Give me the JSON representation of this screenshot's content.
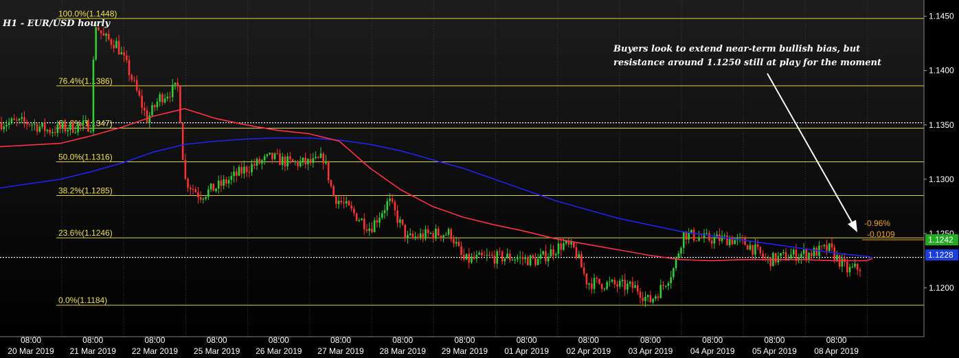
{
  "chart_title": "H1 - EUR/USD hourly",
  "annotation": {
    "line1": "Buyers look to extend near-term bullish bias, but",
    "line2": "resistance around 1.1250 still at play for the moment"
  },
  "colors": {
    "background": "#000000",
    "up_candle": "#33cc33",
    "down_candle": "#ff3333",
    "ma_fast": "#ff3344",
    "ma_slow": "#2222ee",
    "fib_line": "#e6d43c",
    "fib_label": "#f0e050",
    "price_badge": "#22aa22",
    "blue_badge": "#1a3fe0"
  },
  "chart_data": {
    "type": "candlestick",
    "instrument": "EUR/USD",
    "timeframe": "H1",
    "ylim": [
      1.1155,
      1.1465
    ],
    "y_ticks": [
      "1.1450",
      "1.1400",
      "1.1350",
      "1.1300",
      "1.1250",
      "1.1200"
    ],
    "time_hour_label": "08:00",
    "date_labels": [
      "20 Mar 2019",
      "21 Mar 2019",
      "22 Mar 2019",
      "25 Mar 2019",
      "26 Mar 2019",
      "27 Mar 2019",
      "28 Mar 2019",
      "29 Mar 2019",
      "01 Apr 2019",
      "02 Apr 2019",
      "03 Apr 2019",
      "04 Apr 2019",
      "05 Apr 2019",
      "08 Apr 2019"
    ],
    "fib_levels": [
      {
        "label": "100.0%(1.1448)",
        "value": 1.1448
      },
      {
        "label": "76.4%(1.1386)",
        "value": 1.1386
      },
      {
        "label": "61.8%(1.1347)",
        "value": 1.1347
      },
      {
        "label": "50.0%(1.1316)",
        "value": 1.1316
      },
      {
        "label": "38.2%(1.1285)",
        "value": 1.1285
      },
      {
        "label": "23.6%(1.1246)",
        "value": 1.1246
      },
      {
        "label": "0.0%(1.1184)",
        "value": 1.1184
      }
    ],
    "dotted_levels": [
      1.1352,
      1.1228
    ],
    "price_path": [
      [
        0,
        1.1352
      ],
      [
        0.3,
        1.1345
      ],
      [
        0.7,
        1.1348
      ],
      [
        1.0,
        1.135
      ],
      [
        1.05,
        1.1445
      ],
      [
        1.2,
        1.143
      ],
      [
        1.4,
        1.1425
      ],
      [
        1.6,
        1.14
      ],
      [
        1.9,
        1.1355
      ],
      [
        2.1,
        1.1375
      ],
      [
        2.4,
        1.1385
      ],
      [
        2.5,
        1.13
      ],
      [
        2.75,
        1.1285
      ],
      [
        3.1,
        1.1295
      ],
      [
        3.5,
        1.131
      ],
      [
        3.9,
        1.132
      ],
      [
        4.2,
        1.1315
      ],
      [
        4.6,
        1.1315
      ],
      [
        4.75,
        1.132
      ],
      [
        4.9,
        1.1285
      ],
      [
        5.2,
        1.127
      ],
      [
        5.5,
        1.1255
      ],
      [
        5.8,
        1.128
      ],
      [
        6.1,
        1.1245
      ],
      [
        6.5,
        1.125
      ],
      [
        6.8,
        1.125
      ],
      [
        7.0,
        1.1225
      ],
      [
        7.4,
        1.1228
      ],
      [
        7.8,
        1.1228
      ],
      [
        8.2,
        1.1225
      ],
      [
        8.6,
        1.124
      ],
      [
        8.8,
        1.1235
      ],
      [
        9.0,
        1.1205
      ],
      [
        9.4,
        1.1203
      ],
      [
        9.8,
        1.12
      ],
      [
        10.0,
        1.1187
      ],
      [
        10.2,
        1.12
      ],
      [
        10.4,
        1.1218
      ],
      [
        10.55,
        1.125
      ],
      [
        10.9,
        1.1245
      ],
      [
        11.3,
        1.1245
      ],
      [
        11.6,
        1.124
      ],
      [
        11.9,
        1.1225
      ],
      [
        12.3,
        1.123
      ],
      [
        12.6,
        1.1232
      ],
      [
        12.9,
        1.1236
      ],
      [
        13.2,
        1.1216
      ],
      [
        13.5,
        1.122
      ],
      [
        13.75,
        1.1228
      ],
      [
        14.0,
        1.1242
      ]
    ],
    "ma_fast": [
      [
        0,
        1.133
      ],
      [
        0.5,
        1.1333
      ],
      [
        1.0,
        1.134
      ],
      [
        1.5,
        1.1348
      ],
      [
        2.0,
        1.1358
      ],
      [
        2.5,
        1.1365
      ],
      [
        3.0,
        1.1356
      ],
      [
        3.5,
        1.135
      ],
      [
        4.0,
        1.1345
      ],
      [
        4.5,
        1.1342
      ],
      [
        5.0,
        1.1335
      ],
      [
        5.5,
        1.131
      ],
      [
        6.0,
        1.129
      ],
      [
        6.5,
        1.1275
      ],
      [
        7.0,
        1.1265
      ],
      [
        7.5,
        1.1258
      ],
      [
        8.0,
        1.1252
      ],
      [
        8.5,
        1.1245
      ],
      [
        9.0,
        1.124
      ],
      [
        9.5,
        1.1235
      ],
      [
        10.0,
        1.123
      ],
      [
        10.5,
        1.1226
      ],
      [
        11.0,
        1.1225
      ],
      [
        11.5,
        1.1226
      ],
      [
        12.0,
        1.1226
      ],
      [
        12.5,
        1.1226
      ],
      [
        13.0,
        1.1225
      ],
      [
        13.5,
        1.1225
      ],
      [
        14.0,
        1.1227
      ]
    ],
    "ma_slow": [
      [
        0,
        1.1292
      ],
      [
        0.5,
        1.13
      ],
      [
        1.0,
        1.1307
      ],
      [
        1.5,
        1.1315
      ],
      [
        2.0,
        1.1325
      ],
      [
        2.5,
        1.1332
      ],
      [
        3.0,
        1.1335
      ],
      [
        3.5,
        1.1337
      ],
      [
        4.0,
        1.1338
      ],
      [
        4.5,
        1.1338
      ],
      [
        5.0,
        1.1336
      ],
      [
        5.5,
        1.1332
      ],
      [
        6.0,
        1.1326
      ],
      [
        6.5,
        1.1318
      ],
      [
        7.0,
        1.131
      ],
      [
        7.5,
        1.13
      ],
      [
        8.0,
        1.129
      ],
      [
        8.5,
        1.128
      ],
      [
        9.0,
        1.1272
      ],
      [
        9.5,
        1.1264
      ],
      [
        10.0,
        1.1258
      ],
      [
        10.5,
        1.1252
      ],
      [
        11.0,
        1.1248
      ],
      [
        11.5,
        1.1244
      ],
      [
        12.0,
        1.124
      ],
      [
        12.5,
        1.1236
      ],
      [
        13.0,
        1.1232
      ],
      [
        13.5,
        1.1229
      ],
      [
        14.0,
        1.1228
      ]
    ],
    "right_labels": {
      "pct_change": "-0.96%",
      "abs_change": "-0.0109",
      "last_price": "1.1242",
      "ma_value": "1.1228"
    }
  }
}
